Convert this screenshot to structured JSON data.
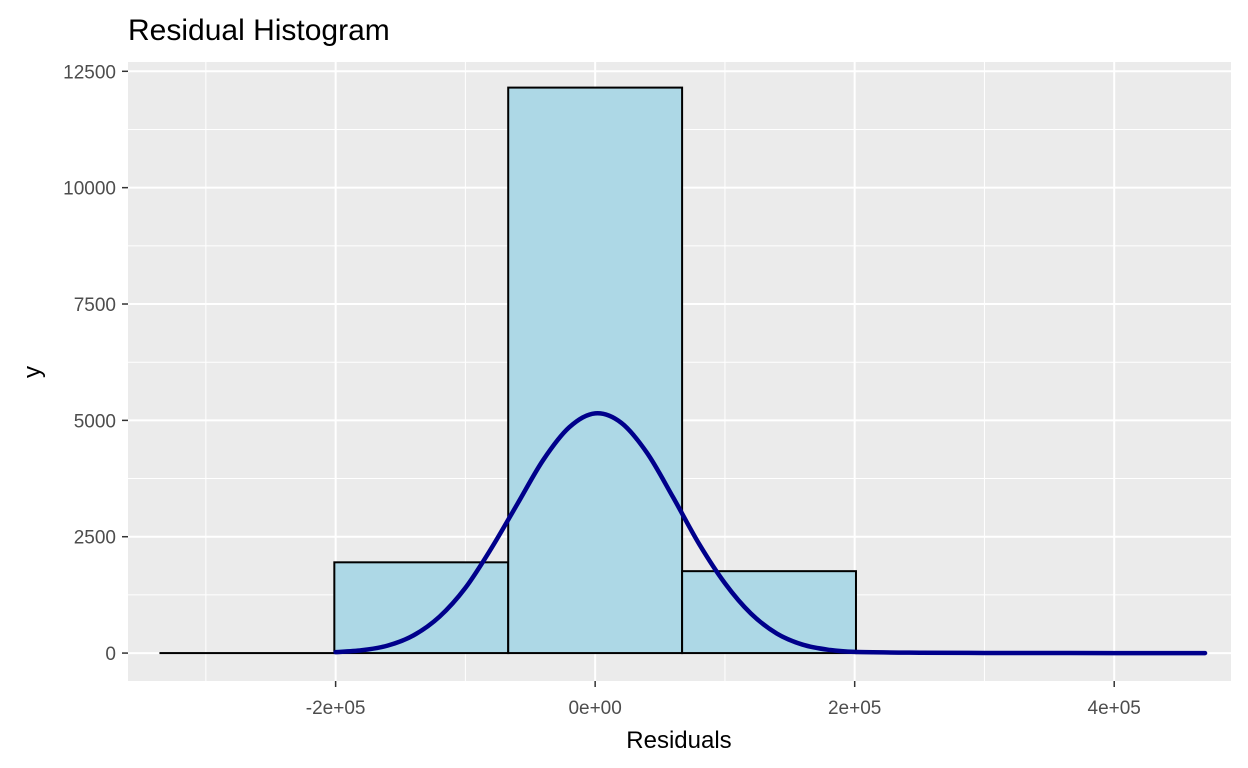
{
  "chart_data": {
    "type": "bar",
    "title": "Residual Histogram",
    "xlabel": "Residuals",
    "ylabel": "y",
    "xlim": [
      -360000,
      490000
    ],
    "ylim": [
      -600,
      12700
    ],
    "x_ticks": [
      {
        "value": -200000,
        "label": "-2e+05"
      },
      {
        "value": 0,
        "label": "0e+00"
      },
      {
        "value": 200000,
        "label": "2e+05"
      },
      {
        "value": 400000,
        "label": "4e+05"
      }
    ],
    "y_ticks": [
      {
        "value": 0,
        "label": "0"
      },
      {
        "value": 2500,
        "label": "2500"
      },
      {
        "value": 5000,
        "label": "5000"
      },
      {
        "value": 7500,
        "label": "7500"
      },
      {
        "value": 10000,
        "label": "10000"
      },
      {
        "value": 12500,
        "label": "12500"
      }
    ],
    "x_minor_breaks": [
      -300000,
      -100000,
      100000,
      300000
    ],
    "y_minor_breaks": [
      1250,
      3750,
      6250,
      8750,
      11250
    ],
    "bins": [
      {
        "x0": -335000,
        "x1": -201000,
        "count": 0
      },
      {
        "x0": -201000,
        "x1": -67000,
        "count": 1950
      },
      {
        "x0": -67000,
        "x1": 67000,
        "count": 12150
      },
      {
        "x0": 67000,
        "x1": 201000,
        "count": 1760
      },
      {
        "x0": 201000,
        "x1": 335000,
        "count": 20
      },
      {
        "x0": 335000,
        "x1": 469000,
        "count": 5
      }
    ],
    "density_curve": {
      "x": [
        -200000,
        -180000,
        -160000,
        -140000,
        -120000,
        -100000,
        -80000,
        -60000,
        -40000,
        -20000,
        0,
        20000,
        40000,
        60000,
        80000,
        100000,
        120000,
        140000,
        160000,
        180000,
        200000,
        250000,
        300000,
        350000,
        400000,
        470000
      ],
      "y": [
        20,
        60,
        160,
        380,
        780,
        1400,
        2250,
        3200,
        4150,
        4850,
        5150,
        4950,
        4300,
        3350,
        2350,
        1500,
        850,
        420,
        180,
        70,
        25,
        8,
        3,
        1,
        0,
        0
      ]
    },
    "colors": {
      "panel_background": "#ebebeb",
      "grid": "#ffffff",
      "bar_fill": "#add8e6",
      "bar_outline": "#000000",
      "curve": "#00008b"
    },
    "grid": true,
    "legend": "none"
  }
}
